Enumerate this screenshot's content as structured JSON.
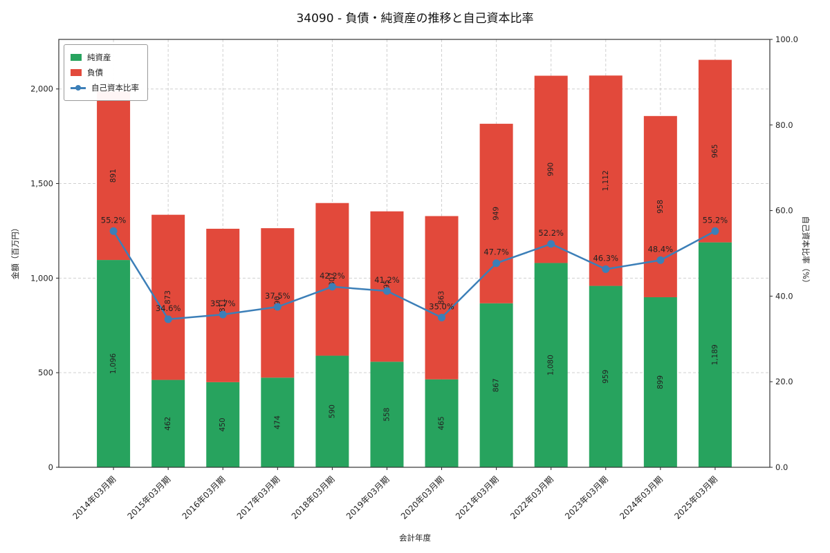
{
  "chart_data": {
    "type": "bar",
    "subtype": "stacked-bar-with-line",
    "title": "34090 - 負債・純資産の推移と自己資本比率",
    "xlabel": "会計年度",
    "ylabel_left": "金額（百万円）",
    "ylabel_right": "自己資本比率（%）",
    "categories": [
      "2014年03月期",
      "2015年03月期",
      "2016年03月期",
      "2017年03月期",
      "2018年03月期",
      "2019年03月期",
      "2020年03月期",
      "2021年03月期",
      "2022年03月期",
      "2023年03月期",
      "2024年03月期",
      "2025年03月期"
    ],
    "series": [
      {
        "name": "純資産",
        "color": "#27a35e",
        "values": [
          1096,
          462,
          450,
          474,
          590,
          558,
          465,
          867,
          1080,
          959,
          899,
          1189
        ],
        "labels": [
          "1,096",
          "462",
          "450",
          "474",
          "590",
          "558",
          "465",
          "867",
          "1,080",
          "959",
          "899",
          "1,189"
        ]
      },
      {
        "name": "負債",
        "color": "#e2493b",
        "values": [
          891,
          873,
          811,
          790,
          807,
          795,
          863,
          949,
          990,
          1112,
          958,
          965
        ],
        "labels": [
          "891",
          "873",
          "811",
          "790",
          "807",
          "795",
          "863",
          "949",
          "990",
          "1,112",
          "958",
          "965"
        ]
      }
    ],
    "line_series": {
      "name": "自己資本比率",
      "color": "#3c7fb8",
      "values": [
        55.2,
        34.6,
        35.7,
        37.5,
        42.2,
        41.2,
        35.0,
        47.7,
        52.2,
        46.3,
        48.4,
        55.2
      ],
      "labels": [
        "55.2%",
        "34.6%",
        "35.7%",
        "37.5%",
        "42.2%",
        "41.2%",
        "35.0%",
        "47.7%",
        "52.2%",
        "46.3%",
        "48.4%",
        "55.2%"
      ]
    },
    "ylim_left": [
      0,
      2262
    ],
    "yticks_left": {
      "values": [
        0,
        500,
        1000,
        1500,
        2000
      ],
      "labels": [
        "0",
        "500",
        "1,000",
        "1,500",
        "2,000"
      ]
    },
    "ylim_right": [
      0,
      100
    ],
    "yticks_right": {
      "values": [
        0,
        20,
        40,
        60,
        80,
        100
      ],
      "labels": [
        "0.0",
        "20.0",
        "40.0",
        "60.0",
        "80.0",
        "100.0"
      ]
    },
    "grid": true,
    "grid_style": "dashed",
    "legend_position": "upper-left"
  }
}
